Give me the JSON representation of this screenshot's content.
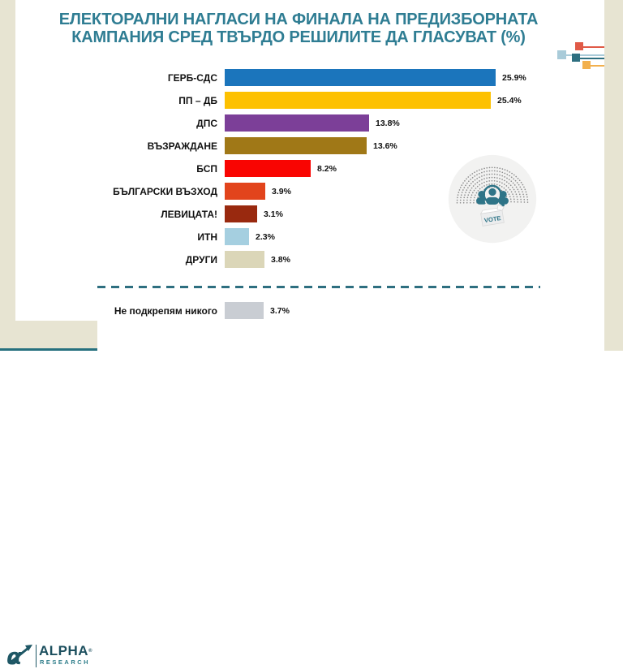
{
  "title": {
    "line1": "ЕЛЕКТОРАЛНИ НАГЛАСИ НА ФИНАЛА НА ПРЕДИЗБОРНАТА",
    "line2": "КАМПАНИЯ СРЕД ТВЪРДО РЕШИЛИТЕ ДА ГЛАСУВАТ (%)"
  },
  "chart_data": {
    "type": "bar",
    "orientation": "horizontal",
    "title": "ЕЛЕКТОРАЛНИ НАГЛАСИ НА ФИНАЛА НА ПРЕДИЗБОРНАТА КАМПАНИЯ СРЕД ТВЪРДО РЕШИЛИТЕ ДА ГЛАСУВАТ (%)",
    "categories": [
      "ГЕРБ-СДС",
      "ПП – ДБ",
      "ДПС",
      "ВЪЗРАЖДАНЕ",
      "БСП",
      "БЪЛГАРСКИ ВЪЗХОД",
      "ЛЕВИЦАТА!",
      "ИТН",
      "ДРУГИ"
    ],
    "values": [
      25.9,
      25.4,
      13.8,
      13.6,
      8.2,
      3.9,
      3.1,
      2.3,
      3.8
    ],
    "value_labels": [
      "25.9%",
      "25.4%",
      "13.8%",
      "13.6%",
      "8.2%",
      "3.9%",
      "3.1%",
      "2.3%",
      "3.8%"
    ],
    "colors": [
      "#1B75BC",
      "#FDC101",
      "#7C3F98",
      "#A07817",
      "#F90502",
      "#E2441C",
      "#99290F",
      "#A5CFE0",
      "#DBD6B8"
    ],
    "separator_row": {
      "category": "Не подкрепям никого",
      "value": 3.7,
      "value_label": "3.7%",
      "color": "#C9CDD3"
    },
    "xlim": [
      0,
      27
    ],
    "grid": false,
    "legend": "none",
    "bar_label_position": "right-of-bar"
  },
  "colors": {
    "title_teal": "#2F7D93",
    "dashed_separator": "#2E6F80",
    "beige_border": "#E7E4D2",
    "background": "#FFFFFF",
    "circle_bg": "#F2F2F1",
    "icon_teal": "#2E7487"
  },
  "vote_graphic": {
    "icon": "parliament-seats-and-voters-icon",
    "box_label": "VOTE"
  },
  "decor_squares": {
    "icon": "scatter-squares-icon",
    "colors": {
      "red": "#E05A47",
      "light_blue": "#A9CBD9",
      "teal": "#2E6F80",
      "orange": "#F2B04E"
    }
  },
  "logo": {
    "mark_icon": "alpha-arrow-icon",
    "mark_glyph": "α",
    "name": "ALPHA",
    "registered": "®",
    "sub": "RESEARCH"
  }
}
